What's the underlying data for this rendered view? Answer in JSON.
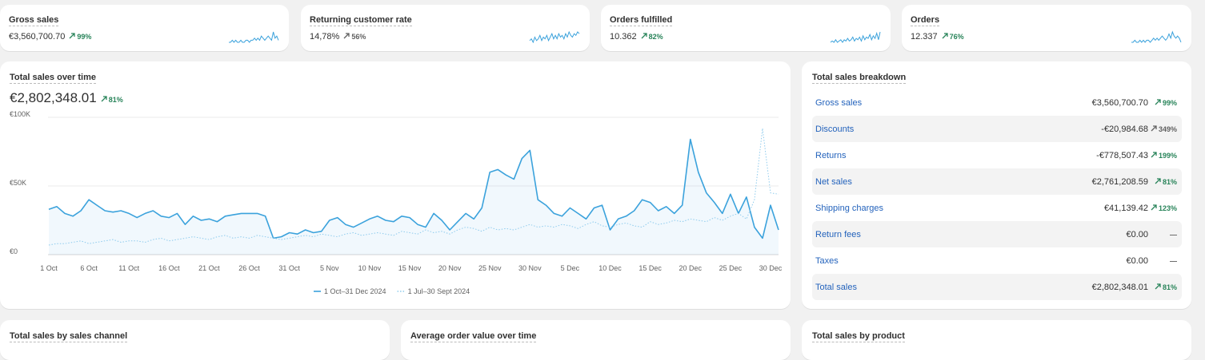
{
  "kpis": [
    {
      "title": "Gross sales",
      "value": "€3,560,700.70",
      "change": "99%",
      "positive": true,
      "spark": [
        3,
        3,
        4,
        3,
        4,
        3,
        3,
        4,
        3,
        3,
        4,
        4,
        3,
        4,
        4,
        5,
        4,
        5,
        4,
        6,
        5,
        4,
        5,
        6,
        5,
        4,
        8,
        5,
        6,
        4
      ]
    },
    {
      "title": "Returning customer rate",
      "value": "14,78%",
      "change": "56%",
      "positive": false,
      "spark": [
        5,
        6,
        4,
        7,
        5,
        6,
        8,
        5,
        7,
        6,
        8,
        5,
        7,
        9,
        6,
        8,
        6,
        9,
        7,
        8,
        6,
        9,
        7,
        10,
        8,
        7,
        9,
        8,
        10,
        9
      ]
    },
    {
      "title": "Orders fulfilled",
      "value": "10.362",
      "change": "82%",
      "positive": true,
      "spark": [
        3,
        4,
        3,
        5,
        3,
        4,
        5,
        3,
        5,
        4,
        6,
        4,
        5,
        7,
        4,
        6,
        5,
        7,
        4,
        8,
        5,
        7,
        6,
        9,
        5,
        8,
        6,
        10,
        5,
        11
      ]
    },
    {
      "title": "Orders",
      "value": "12.337",
      "change": "76%",
      "positive": true,
      "spark": [
        3,
        3,
        4,
        3,
        3,
        4,
        3,
        4,
        3,
        4,
        4,
        3,
        4,
        5,
        4,
        5,
        4,
        5,
        6,
        5,
        4,
        5,
        7,
        5,
        8,
        6,
        5,
        6,
        5,
        3
      ]
    }
  ],
  "chart_data": {
    "type": "line",
    "title": "Total sales over time",
    "total": "€2,802,348.01",
    "change": "81%",
    "categories": [
      "1 Oct",
      null,
      null,
      null,
      null,
      "6 Oct",
      null,
      null,
      null,
      null,
      "11 Oct",
      null,
      null,
      null,
      null,
      "16 Oct",
      null,
      null,
      null,
      null,
      "21 Oct",
      null,
      null,
      null,
      null,
      "26 Oct",
      null,
      null,
      null,
      null,
      "31 Oct",
      null,
      null,
      null,
      null,
      "5 Nov",
      null,
      null,
      null,
      null,
      "10 Nov",
      null,
      null,
      null,
      null,
      "15 Nov",
      null,
      null,
      null,
      null,
      "20 Nov",
      null,
      null,
      null,
      null,
      "25 Nov",
      null,
      null,
      null,
      null,
      "30 Nov",
      null,
      null,
      null,
      null,
      "5 Dec",
      null,
      null,
      null,
      null,
      "10 Dec",
      null,
      null,
      null,
      null,
      "15 Dec",
      null,
      null,
      null,
      null,
      "20 Dec",
      null,
      null,
      null,
      null,
      "25 Dec",
      null,
      null,
      null,
      null,
      "30 Dec",
      null
    ],
    "series": [
      {
        "name": "1 Oct–31 Dec 2024",
        "color": "#3ba2dc",
        "values": [
          33000,
          35000,
          30000,
          28000,
          32000,
          40000,
          36000,
          32000,
          31000,
          32000,
          30000,
          27000,
          30000,
          32000,
          28000,
          27000,
          30000,
          22000,
          28000,
          25000,
          26000,
          24000,
          28000,
          29000,
          30000,
          30000,
          30000,
          28000,
          12000,
          13000,
          16000,
          15000,
          18000,
          16000,
          17000,
          25000,
          27000,
          22000,
          20000,
          23000,
          26000,
          28000,
          25000,
          24000,
          28000,
          27000,
          22000,
          20000,
          30000,
          25000,
          18000,
          24000,
          30000,
          26000,
          34000,
          60000,
          62000,
          58000,
          55000,
          70000,
          76000,
          40000,
          36000,
          30000,
          28000,
          34000,
          30000,
          26000,
          34000,
          36000,
          18000,
          26000,
          28000,
          32000,
          40000,
          38000,
          32000,
          35000,
          30000,
          36000,
          84000,
          60000,
          45000,
          38000,
          30000,
          44000,
          30000,
          42000,
          20000,
          12000,
          36000,
          18000
        ]
      },
      {
        "name": "1 Jul–30 Sept 2024",
        "color": "#8ecbed",
        "values": [
          7000,
          8000,
          8000,
          9000,
          10000,
          8000,
          9000,
          10000,
          11000,
          9000,
          10000,
          10000,
          9000,
          11000,
          12000,
          10000,
          11000,
          12000,
          13000,
          12000,
          11000,
          13000,
          14000,
          12000,
          13000,
          12000,
          14000,
          13000,
          12000,
          11000,
          12000,
          13000,
          14000,
          13000,
          15000,
          14000,
          13000,
          15000,
          16000,
          14000,
          15000,
          16000,
          15000,
          14000,
          17000,
          16000,
          15000,
          18000,
          16000,
          17000,
          15000,
          18000,
          20000,
          19000,
          17000,
          20000,
          18000,
          19000,
          18000,
          20000,
          22000,
          20000,
          21000,
          20000,
          22000,
          21000,
          19000,
          22000,
          24000,
          21000,
          20000,
          22000,
          23000,
          21000,
          20000,
          24000,
          22000,
          23000,
          25000,
          24000,
          26000,
          25000,
          24000,
          27000,
          25000,
          28000,
          30000,
          26000,
          40000,
          92000,
          45000,
          44000
        ]
      }
    ],
    "ylim": [
      0,
      100000
    ],
    "yticks": [
      {
        "value": 0,
        "label": "€0"
      },
      {
        "value": 50000,
        "label": "€50K"
      },
      {
        "value": 100000,
        "label": "€100K"
      }
    ],
    "grid": true
  },
  "breakdown": {
    "title": "Total sales breakdown",
    "rows": [
      {
        "label": "Gross sales",
        "value": "€3,560,700.70",
        "change": "99%",
        "positive": true
      },
      {
        "label": "Discounts",
        "value": "-€20,984.68",
        "change": "349%",
        "positive": false
      },
      {
        "label": "Returns",
        "value": "-€778,507.43",
        "change": "199%",
        "positive": true
      },
      {
        "label": "Net sales",
        "value": "€2,761,208.59",
        "change": "81%",
        "positive": true
      },
      {
        "label": "Shipping charges",
        "value": "€41,139.42",
        "change": "123%",
        "positive": true
      },
      {
        "label": "Return fees",
        "value": "€0.00",
        "change": "—",
        "positive": null
      },
      {
        "label": "Taxes",
        "value": "€0.00",
        "change": "—",
        "positive": null
      },
      {
        "label": "Total sales",
        "value": "€2,802,348.01",
        "change": "81%",
        "positive": true
      }
    ]
  },
  "bottom": [
    "Total sales by sales channel",
    "Average order value over time",
    "Total sales by product"
  ]
}
